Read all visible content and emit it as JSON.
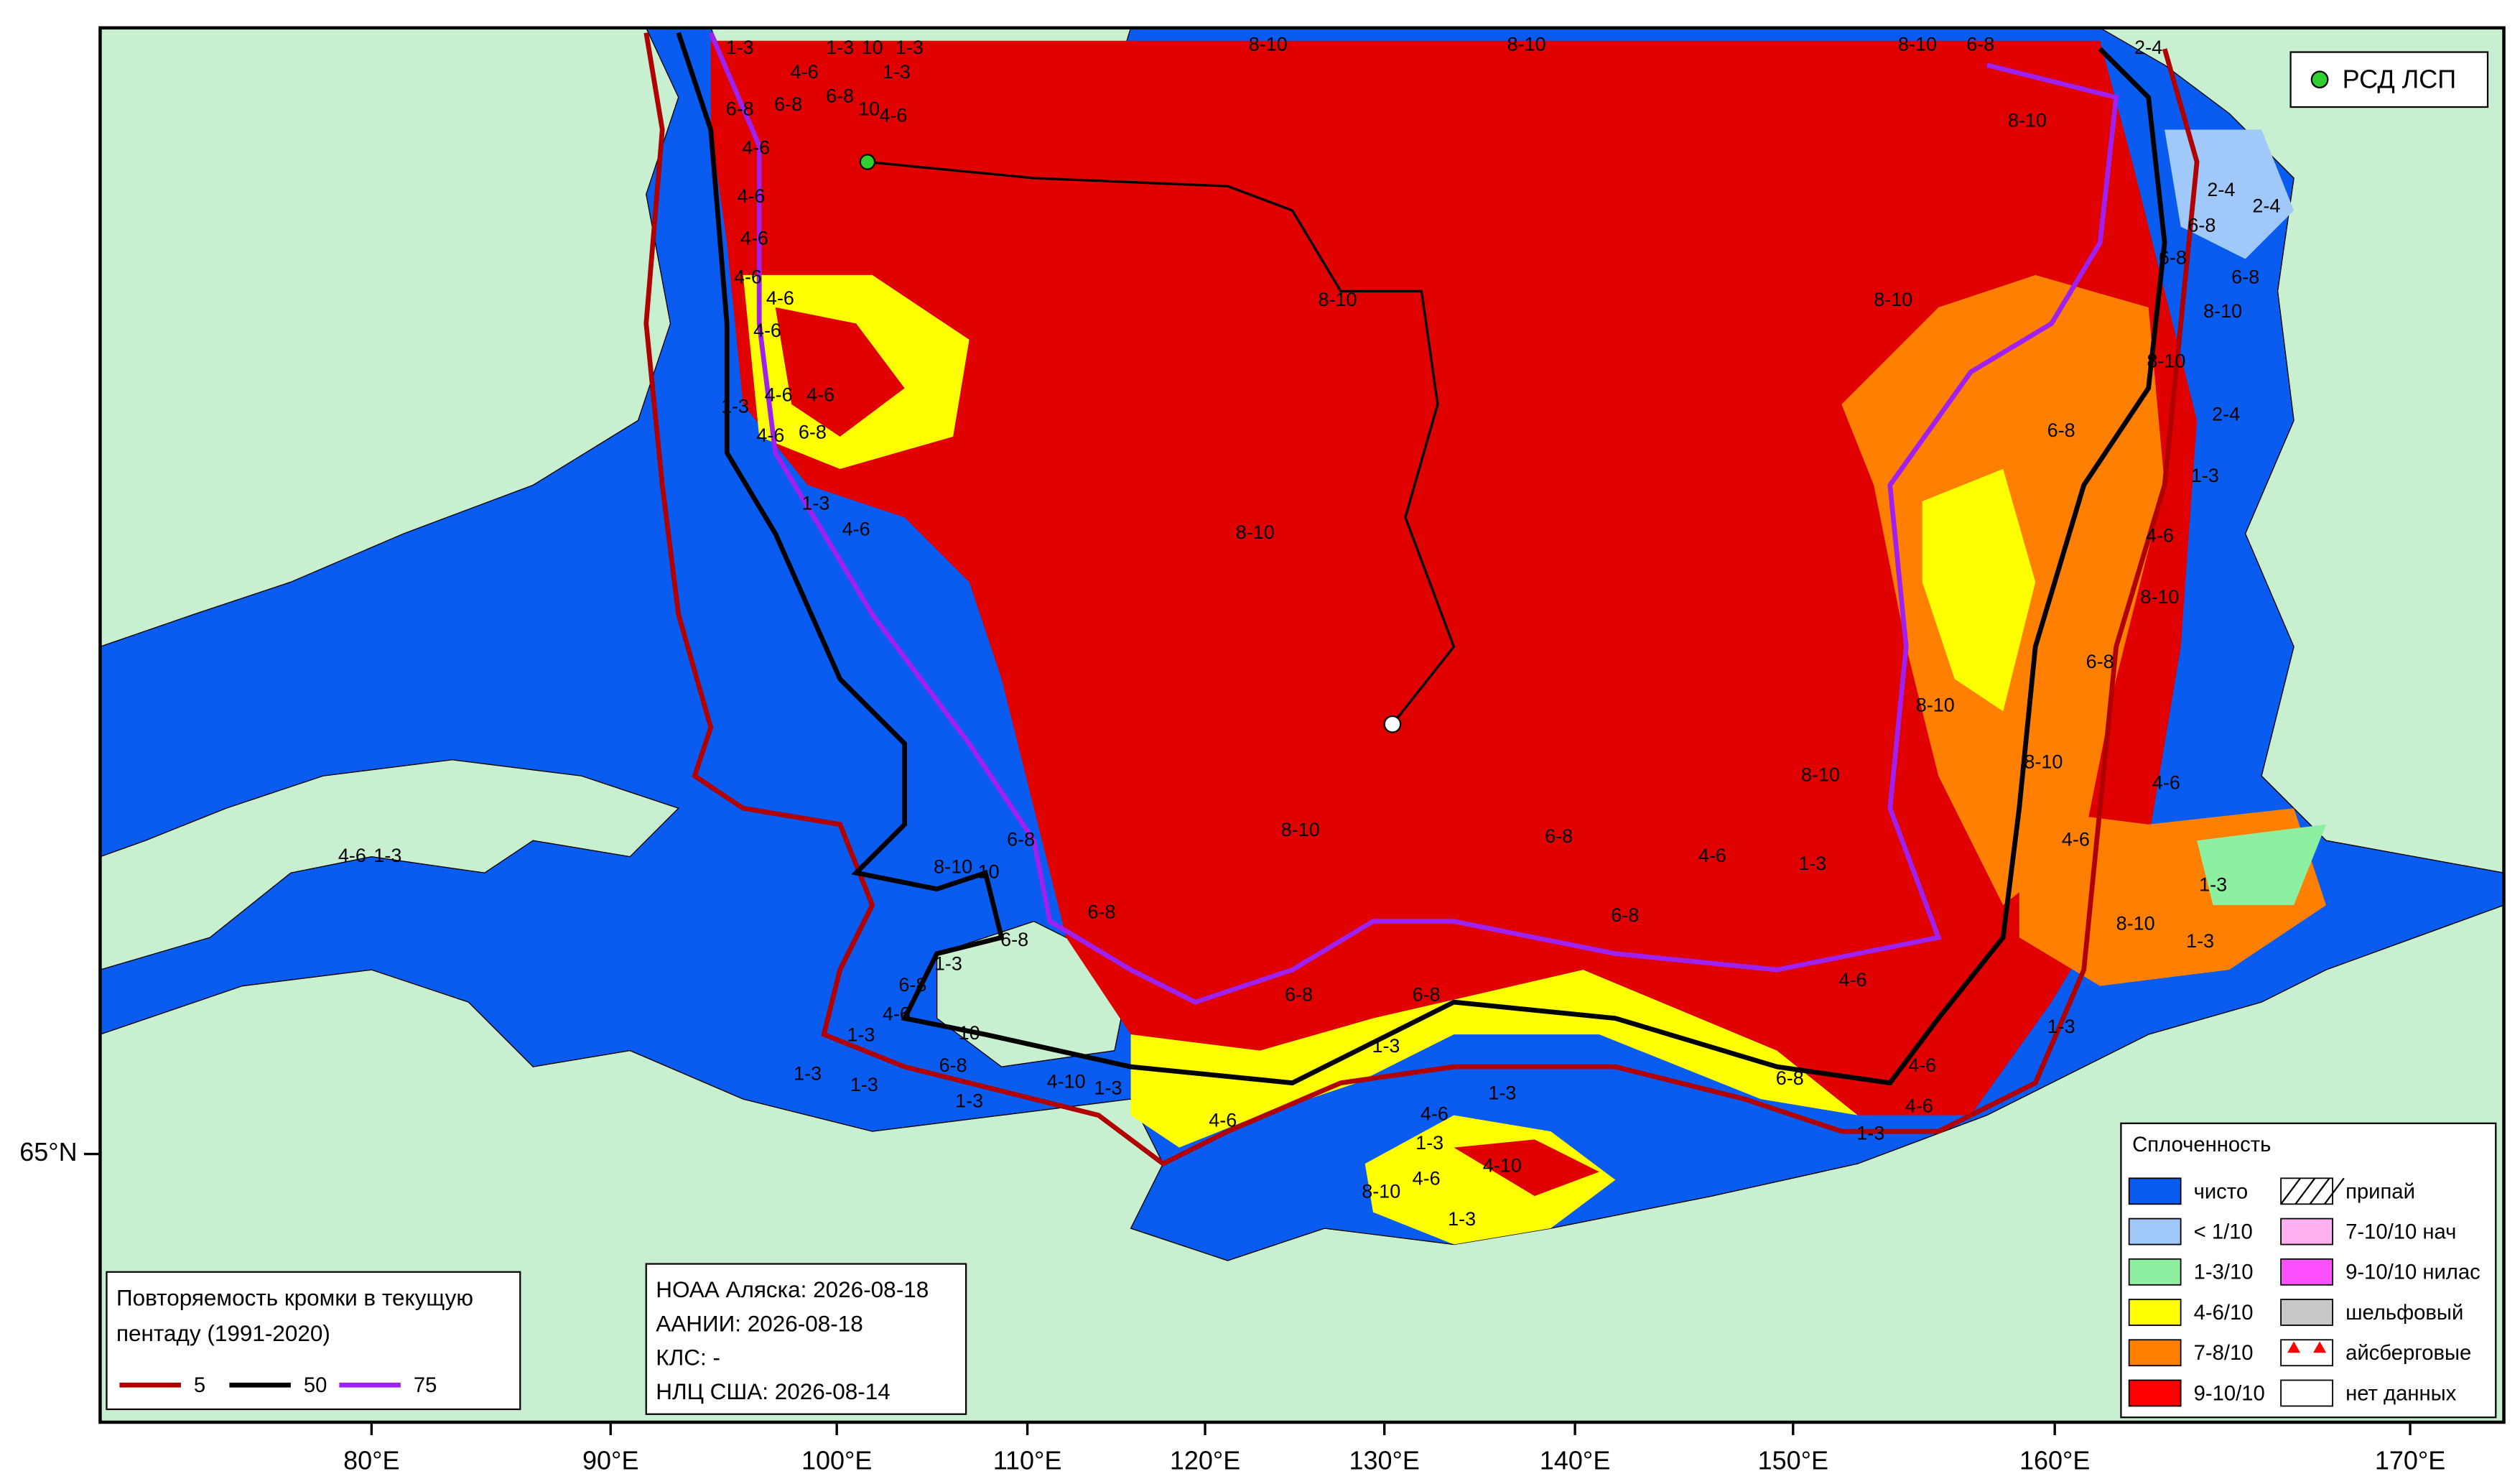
{
  "map": {
    "latitude_labels": [
      "65°N"
    ],
    "longitude_labels": [
      "80°E",
      "90°E",
      "100°E",
      "110°E",
      "120°E",
      "130°E",
      "140°E",
      "150°E",
      "160°E",
      "170°E"
    ]
  },
  "station_legend": {
    "label": "РСД ЛСП"
  },
  "concentration_legend": {
    "title": "Сплоченность",
    "items": [
      {
        "label": "чисто",
        "color": "#0a5cf0"
      },
      {
        "label": "< 1/10",
        "color": "#a0c8f8"
      },
      {
        "label": "1-3/10",
        "color": "#8cf0a0"
      },
      {
        "label": "4-6/10",
        "color": "#ffff00"
      },
      {
        "label": "7-8/10",
        "color": "#ff8000"
      },
      {
        "label": "9-10/10",
        "color": "#ff0000"
      },
      {
        "label": "припай",
        "color": "#ffffff"
      },
      {
        "label": "7-10/10 нач",
        "color": "#ffb0f0"
      },
      {
        "label": "9-10/10 нилас",
        "color": "#ff50ff"
      },
      {
        "label": "шельфовый",
        "color": "#c8c8c8"
      },
      {
        "label": "айсберговые",
        "color": "#ffffff"
      },
      {
        "label": "нет данных",
        "color": "#ffffff"
      }
    ]
  },
  "edge_legend": {
    "title_lines": [
      "Повторяемость кромки в текущую",
      "пентаду (1991-2020)"
    ],
    "items": [
      {
        "label": "5",
        "color": "#b00000"
      },
      {
        "label": "50",
        "color": "#000000"
      },
      {
        "label": "75",
        "color": "#a020f0"
      }
    ]
  },
  "sources": [
    "НОАА Аляска: 2026-08-18",
    "ААНИИ: 2026-08-18",
    "КЛС: -",
    "НЛЦ США: 2026-08-14"
  ],
  "ice_labels": [
    "1-3",
    "1-3",
    "10",
    "1-3",
    "4-6",
    "1-3",
    "6-8",
    "6-8",
    "6-8",
    "10",
    "4-6",
    "4-6",
    "4-6",
    "4-6",
    "4-6",
    "4-6",
    "4-6",
    "4-6",
    "4-6",
    "1-3",
    "4-6",
    "6-8",
    "1-3",
    "4-6",
    "8-10",
    "8-10",
    "8-10",
    "6-8",
    "8-10",
    "8-10",
    "8-10",
    "8-10",
    "8-10",
    "8-10",
    "6-8",
    "2-4",
    "2-4",
    "2-4",
    "6-8",
    "6-8",
    "6-8",
    "8-10",
    "8-10",
    "2-4",
    "6-8",
    "1-3",
    "4-6",
    "8-10",
    "6-8",
    "8-10",
    "8-10",
    "4-6",
    "4-6",
    "1-3",
    "8-10",
    "1-3",
    "1-3",
    "4-6",
    "4-6",
    "6-8",
    "1-3",
    "4-6",
    "1-3",
    "4-6",
    "6-8",
    "6-8",
    "6-8",
    "1-3",
    "4-6",
    "1-3",
    "4-6",
    "1-3",
    "4-6",
    "4-10",
    "8-10",
    "1-3",
    "4-6",
    "1-3",
    "6-8",
    "6-8",
    "1-3",
    "6-8",
    "4-6",
    "1-3",
    "10",
    "1-3",
    "1-3",
    "6-8",
    "1-3",
    "4-10",
    "1-3",
    "8-10",
    "10",
    "6-8"
  ]
}
